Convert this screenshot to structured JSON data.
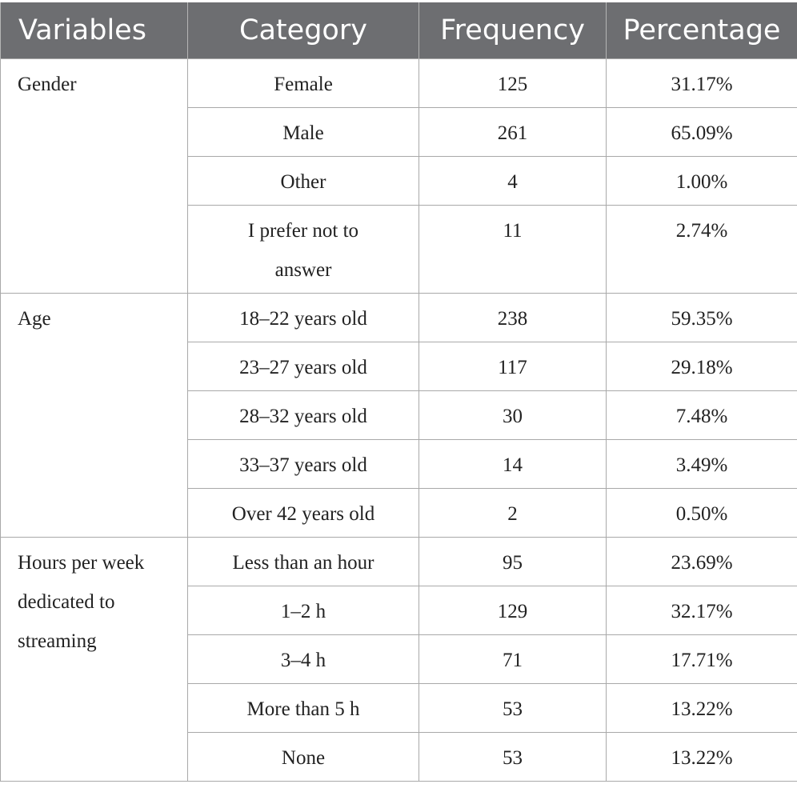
{
  "headers": [
    "Variables",
    "Category",
    "Frequency",
    "Percentage"
  ],
  "groups": [
    {
      "variable": "Gender",
      "rows": [
        {
          "category": "Female",
          "frequency": "125",
          "percentage": "31.17%"
        },
        {
          "category": "Male",
          "frequency": "261",
          "percentage": "65.09%"
        },
        {
          "category": "Other",
          "frequency": "4",
          "percentage": "1.00%"
        },
        {
          "category": "I prefer not to answer",
          "frequency": "11",
          "percentage": "2.74%"
        }
      ]
    },
    {
      "variable": "Age",
      "rows": [
        {
          "category": "18–22 years old",
          "frequency": "238",
          "percentage": "59.35%"
        },
        {
          "category": "23–27 years old",
          "frequency": "117",
          "percentage": "29.18%"
        },
        {
          "category": "28–32 years old",
          "frequency": "30",
          "percentage": "7.48%"
        },
        {
          "category": "33–37 years old",
          "frequency": "14",
          "percentage": "3.49%"
        },
        {
          "category": "Over 42 years old",
          "frequency": "2",
          "percentage": "0.50%"
        }
      ]
    },
    {
      "variable": "Hours per week dedicated to streaming",
      "rows": [
        {
          "category": "Less than an hour",
          "frequency": "95",
          "percentage": "23.69%"
        },
        {
          "category": "1–2 h",
          "frequency": "129",
          "percentage": "32.17%"
        },
        {
          "category": "3–4 h",
          "frequency": "71",
          "percentage": "17.71%"
        },
        {
          "category": "More than 5 h",
          "frequency": "53",
          "percentage": "13.22%"
        },
        {
          "category": "None",
          "frequency": "53",
          "percentage": "13.22%"
        }
      ]
    }
  ]
}
